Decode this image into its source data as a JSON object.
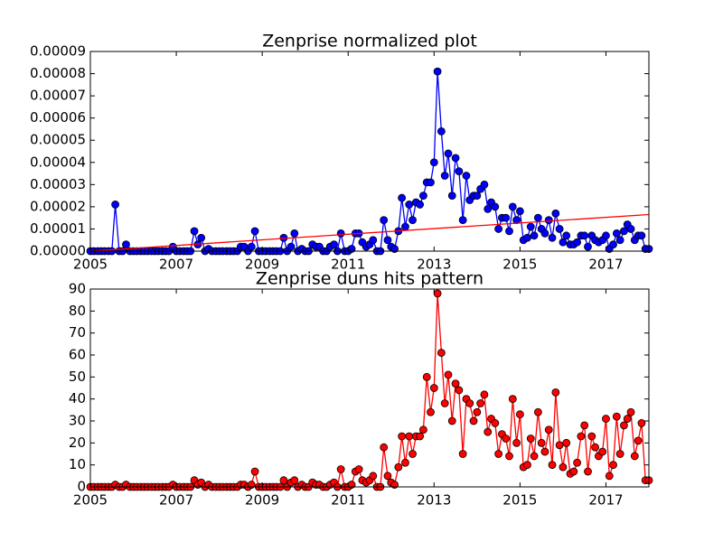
{
  "chart_data": [
    {
      "type": "line",
      "title": "Zenprise normalized plot",
      "xlim": [
        2005,
        2018
      ],
      "xticks": [
        2005,
        2007,
        2009,
        2011,
        2013,
        2015,
        2017
      ],
      "ylim": [
        0,
        9e-05
      ],
      "yticks": [
        {
          "value": 0,
          "label": "0.00000"
        },
        {
          "value": 1e-05,
          "label": "0.00001"
        },
        {
          "value": 2e-05,
          "label": "0.00002"
        },
        {
          "value": 3e-05,
          "label": "0.00003"
        },
        {
          "value": 4e-05,
          "label": "0.00004"
        },
        {
          "value": 5e-05,
          "label": "0.00005"
        },
        {
          "value": 6e-05,
          "label": "0.00006"
        },
        {
          "value": 7e-05,
          "label": "0.00007"
        },
        {
          "value": 8e-05,
          "label": "0.00008"
        },
        {
          "value": 9e-05,
          "label": "0.00009"
        }
      ],
      "series": [
        {
          "color": "#0000ff",
          "x": [
            2005,
            2005.08,
            2005.17,
            2005.25,
            2005.33,
            2005.42,
            2005.5,
            2005.58,
            2005.67,
            2005.75,
            2005.83,
            2005.92,
            2006,
            2006.08,
            2006.17,
            2006.25,
            2006.33,
            2006.42,
            2006.5,
            2006.58,
            2006.67,
            2006.75,
            2006.83,
            2006.92,
            2007,
            2007.08,
            2007.17,
            2007.25,
            2007.33,
            2007.42,
            2007.5,
            2007.58,
            2007.67,
            2007.75,
            2007.83,
            2007.92,
            2008,
            2008.08,
            2008.17,
            2008.25,
            2008.33,
            2008.42,
            2008.5,
            2008.58,
            2008.67,
            2008.75,
            2008.83,
            2008.92,
            2009,
            2009.08,
            2009.17,
            2009.25,
            2009.33,
            2009.42,
            2009.5,
            2009.58,
            2009.67,
            2009.75,
            2009.83,
            2009.92,
            2010,
            2010.08,
            2010.17,
            2010.25,
            2010.33,
            2010.42,
            2010.5,
            2010.58,
            2010.67,
            2010.75,
            2010.83,
            2010.92,
            2011,
            2011.08,
            2011.17,
            2011.25,
            2011.33,
            2011.42,
            2011.5,
            2011.58,
            2011.67,
            2011.75,
            2011.83,
            2011.92,
            2012,
            2012.08,
            2012.17,
            2012.25,
            2012.33,
            2012.42,
            2012.5,
            2012.58,
            2012.67,
            2012.75,
            2012.83,
            2012.92,
            2013,
            2013.08,
            2013.17,
            2013.25,
            2013.33,
            2013.42,
            2013.5,
            2013.58,
            2013.67,
            2013.75,
            2013.83,
            2013.92,
            2014,
            2014.08,
            2014.17,
            2014.25,
            2014.33,
            2014.42,
            2014.5,
            2014.58,
            2014.67,
            2014.75,
            2014.83,
            2014.92,
            2015,
            2015.08,
            2015.17,
            2015.25,
            2015.33,
            2015.42,
            2015.5,
            2015.58,
            2015.67,
            2015.75,
            2015.83,
            2015.92,
            2016,
            2016.08,
            2016.17,
            2016.25,
            2016.33,
            2016.42,
            2016.5,
            2016.58,
            2016.67,
            2016.75,
            2016.83,
            2016.92,
            2017,
            2017.08,
            2017.17,
            2017.25,
            2017.33,
            2017.42,
            2017.5,
            2017.58,
            2017.67,
            2017.75,
            2017.83,
            2017.92,
            2018
          ],
          "values": [
            0,
            0,
            0,
            0,
            0,
            0,
            0,
            2.1e-05,
            0,
            0,
            3e-06,
            0,
            0,
            0,
            0,
            0,
            0,
            0,
            0,
            0,
            0,
            0,
            0,
            2e-06,
            0,
            0,
            0,
            0,
            0,
            9e-06,
            3e-06,
            6e-06,
            0,
            1e-06,
            0,
            0,
            0,
            0,
            0,
            0,
            0,
            0,
            2e-06,
            2e-06,
            0,
            2e-06,
            9e-06,
            0,
            0,
            0,
            0,
            0,
            0,
            0,
            6e-06,
            0,
            2e-06,
            8e-06,
            0,
            1e-06,
            0,
            0,
            3e-06,
            2e-06,
            2e-06,
            0,
            0,
            2e-06,
            3e-06,
            0,
            8e-06,
            0,
            0,
            1e-06,
            8e-06,
            8e-06,
            4e-06,
            2e-06,
            3e-06,
            5e-06,
            0,
            0,
            1.4e-05,
            5e-06,
            2e-06,
            1e-06,
            9e-06,
            2.4e-05,
            1.1e-05,
            2.1e-05,
            1.4e-05,
            2.2e-05,
            2.1e-05,
            2.5e-05,
            3.1e-05,
            3.1e-05,
            4e-05,
            8.1e-05,
            5.4e-05,
            3.4e-05,
            4.4e-05,
            2.5e-05,
            4.2e-05,
            3.6e-05,
            1.4e-05,
            3.4e-05,
            2.3e-05,
            2.5e-05,
            2.5e-05,
            2.8e-05,
            3e-05,
            1.9e-05,
            2.2e-05,
            2e-05,
            1e-05,
            1.5e-05,
            1.5e-05,
            9e-06,
            2e-05,
            1.4e-05,
            1.8e-05,
            5e-06,
            6e-06,
            1.1e-05,
            7e-06,
            1.5e-05,
            1e-05,
            8e-06,
            1.4e-05,
            6e-06,
            1.7e-05,
            1e-05,
            4e-06,
            7e-06,
            3e-06,
            3e-06,
            4e-06,
            7e-06,
            7e-06,
            2e-06,
            7e-06,
            5e-06,
            4e-06,
            5e-06,
            7e-06,
            1e-06,
            3e-06,
            8e-06,
            5e-06,
            9e-06,
            1.2e-05,
            1e-05,
            5e-06,
            7e-06,
            7e-06,
            1e-06,
            1e-06
          ]
        },
        {
          "color": "#ff0000",
          "x": [
            2005,
            2018
          ],
          "values": [
            0,
            1.65e-05
          ]
        }
      ]
    },
    {
      "type": "line",
      "title": "Zenprise duns hits pattern",
      "xlim": [
        2005,
        2018
      ],
      "xticks": [
        2005,
        2007,
        2009,
        2011,
        2013,
        2015,
        2017
      ],
      "ylim": [
        0,
        90
      ],
      "yticks": [
        0,
        10,
        20,
        30,
        40,
        50,
        60,
        70,
        80,
        90
      ],
      "series": [
        {
          "color": "#ff0000",
          "x": [
            2005,
            2005.08,
            2005.17,
            2005.25,
            2005.33,
            2005.42,
            2005.5,
            2005.58,
            2005.67,
            2005.75,
            2005.83,
            2005.92,
            2006,
            2006.08,
            2006.17,
            2006.25,
            2006.33,
            2006.42,
            2006.5,
            2006.58,
            2006.67,
            2006.75,
            2006.83,
            2006.92,
            2007,
            2007.08,
            2007.17,
            2007.25,
            2007.33,
            2007.42,
            2007.5,
            2007.58,
            2007.67,
            2007.75,
            2007.83,
            2007.92,
            2008,
            2008.08,
            2008.17,
            2008.25,
            2008.33,
            2008.42,
            2008.5,
            2008.58,
            2008.67,
            2008.75,
            2008.83,
            2008.92,
            2009,
            2009.08,
            2009.17,
            2009.25,
            2009.33,
            2009.42,
            2009.5,
            2009.58,
            2009.67,
            2009.75,
            2009.83,
            2009.92,
            2010,
            2010.08,
            2010.17,
            2010.25,
            2010.33,
            2010.42,
            2010.5,
            2010.58,
            2010.67,
            2010.75,
            2010.83,
            2010.92,
            2011,
            2011.08,
            2011.17,
            2011.25,
            2011.33,
            2011.42,
            2011.5,
            2011.58,
            2011.67,
            2011.75,
            2011.83,
            2011.92,
            2012,
            2012.08,
            2012.17,
            2012.25,
            2012.33,
            2012.42,
            2012.5,
            2012.58,
            2012.67,
            2012.75,
            2012.83,
            2012.92,
            2013,
            2013.08,
            2013.17,
            2013.25,
            2013.33,
            2013.42,
            2013.5,
            2013.58,
            2013.67,
            2013.75,
            2013.83,
            2013.92,
            2014,
            2014.08,
            2014.17,
            2014.25,
            2014.33,
            2014.42,
            2014.5,
            2014.58,
            2014.67,
            2014.75,
            2014.83,
            2014.92,
            2015,
            2015.08,
            2015.17,
            2015.25,
            2015.33,
            2015.42,
            2015.5,
            2015.58,
            2015.67,
            2015.75,
            2015.83,
            2015.92,
            2016,
            2016.08,
            2016.17,
            2016.25,
            2016.33,
            2016.42,
            2016.5,
            2016.58,
            2016.67,
            2016.75,
            2016.83,
            2016.92,
            2017,
            2017.08,
            2017.17,
            2017.25,
            2017.33,
            2017.42,
            2017.5,
            2017.58,
            2017.67,
            2017.75,
            2017.83,
            2017.92,
            2018
          ],
          "values": [
            0,
            0,
            0,
            0,
            0,
            0,
            0,
            1,
            0,
            0,
            1,
            0,
            0,
            0,
            0,
            0,
            0,
            0,
            0,
            0,
            0,
            0,
            0,
            1,
            0,
            0,
            0,
            0,
            0,
            3,
            1,
            2,
            0,
            1,
            0,
            0,
            0,
            0,
            0,
            0,
            0,
            0,
            1,
            1,
            0,
            1,
            7,
            0,
            0,
            0,
            0,
            0,
            0,
            0,
            3,
            0,
            2,
            3,
            0,
            1,
            0,
            0,
            2,
            1,
            1,
            0,
            0,
            1,
            2,
            0,
            8,
            0,
            0,
            1,
            7,
            8,
            3,
            2,
            3,
            5,
            0,
            0,
            18,
            5,
            2,
            1,
            9,
            23,
            11,
            23,
            15,
            23,
            23,
            26,
            50,
            34,
            45,
            88,
            61,
            38,
            51,
            30,
            47,
            44,
            15,
            40,
            38,
            30,
            34,
            38,
            42,
            25,
            31,
            29,
            15,
            24,
            22,
            14,
            40,
            20,
            33,
            9,
            10,
            22,
            14,
            34,
            20,
            16,
            26,
            10,
            43,
            19,
            9,
            20,
            6,
            7,
            11,
            23,
            28,
            7,
            23,
            18,
            14,
            16,
            31,
            5,
            10,
            32,
            15,
            28,
            31,
            34,
            14,
            21,
            29,
            3,
            3
          ]
        }
      ]
    }
  ]
}
